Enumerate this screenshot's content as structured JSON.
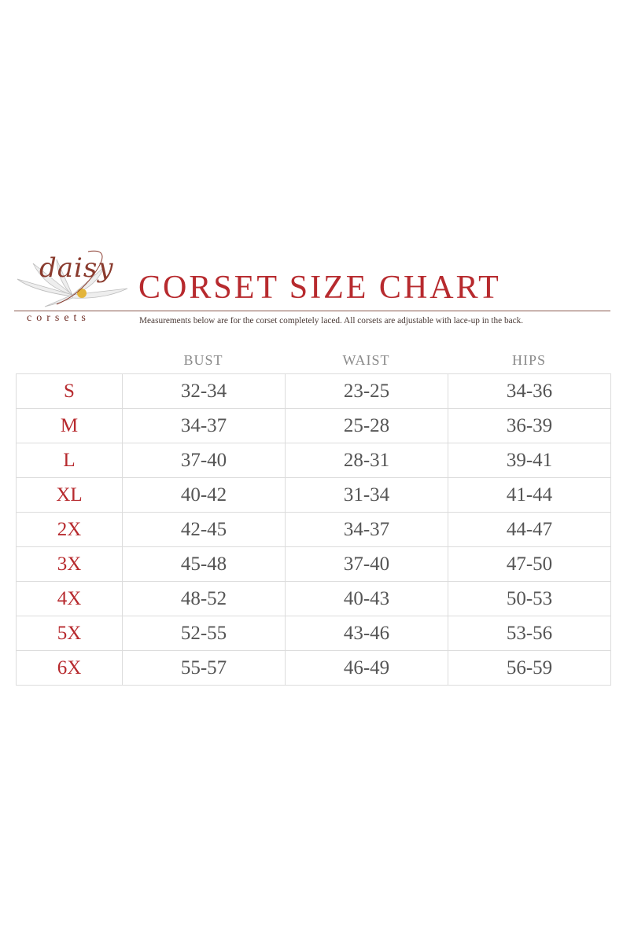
{
  "logo": {
    "script": "daisy",
    "subtitle": "corsets"
  },
  "title": "CORSET SIZE CHART",
  "note": "Measurements below are for the corset completely laced.  All corsets are adjustable with lace-up in the back.",
  "colors": {
    "accent": "#b72a2e",
    "text": "#555555",
    "border": "#dcdcdc"
  },
  "table": {
    "headers": [
      "",
      "BUST",
      "WAIST",
      "HIPS"
    ],
    "rows": [
      [
        "S",
        "32-34",
        "23-25",
        "34-36"
      ],
      [
        "M",
        "34-37",
        "25-28",
        "36-39"
      ],
      [
        "L",
        "37-40",
        "28-31",
        "39-41"
      ],
      [
        "XL",
        "40-42",
        "31-34",
        "41-44"
      ],
      [
        "2X",
        "42-45",
        "34-37",
        "44-47"
      ],
      [
        "3X",
        "45-48",
        "37-40",
        "47-50"
      ],
      [
        "4X",
        "48-52",
        "40-43",
        "50-53"
      ],
      [
        "5X",
        "52-55",
        "43-46",
        "53-56"
      ],
      [
        "6X",
        "55-57",
        "46-49",
        "56-59"
      ]
    ]
  }
}
